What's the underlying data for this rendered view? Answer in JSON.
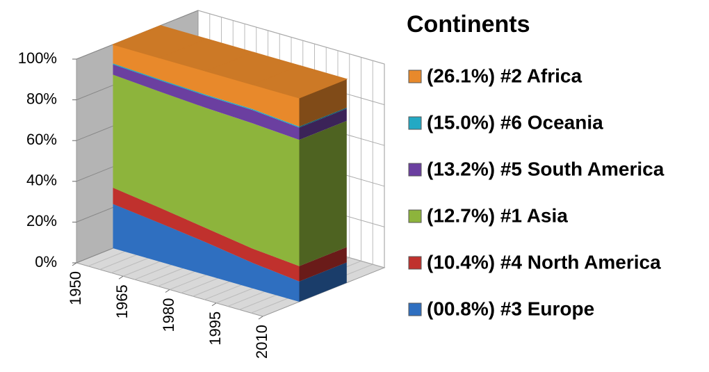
{
  "chart_data": {
    "type": "area3d_stacked_percent",
    "x": [
      1950,
      1965,
      1980,
      1995,
      2010
    ],
    "ylim": [
      0,
      100
    ],
    "yticks": [
      {
        "value": 0,
        "label": "0%"
      },
      {
        "value": 20,
        "label": "20%"
      },
      {
        "value": 40,
        "label": "40%"
      },
      {
        "value": 60,
        "label": "60%"
      },
      {
        "value": 80,
        "label": "80%"
      },
      {
        "value": 100,
        "label": "100%"
      }
    ],
    "grid": true,
    "legend": "right",
    "legend_title": "Continents",
    "series": [
      {
        "name": "(00.8%) #3 Europe",
        "color": "#2f6fc0",
        "values": [
          21.7,
          19,
          16,
          12.5,
          10
        ]
      },
      {
        "name": "(10.4%) #4 North America",
        "color": "#c0312d",
        "values": [
          8,
          7.5,
          7,
          7,
          7.5
        ]
      },
      {
        "name": "(12.7%) #1 Asia",
        "color": "#8db43c",
        "values": [
          55.5,
          57,
          59,
          61.5,
          62
        ]
      },
      {
        "name": "(13.2%) #5 South America",
        "color": "#6b3fa0",
        "values": [
          5,
          5.5,
          6,
          6.5,
          6
        ]
      },
      {
        "name": "(15.0%) #6 Oceania",
        "color": "#23a9c4",
        "values": [
          0.5,
          0.5,
          0.5,
          0.5,
          0.5
        ]
      },
      {
        "name": "(26.1%) #2 Africa",
        "color": "#e8892b",
        "values": [
          9.3,
          10.5,
          11.5,
          12,
          14
        ]
      }
    ]
  }
}
